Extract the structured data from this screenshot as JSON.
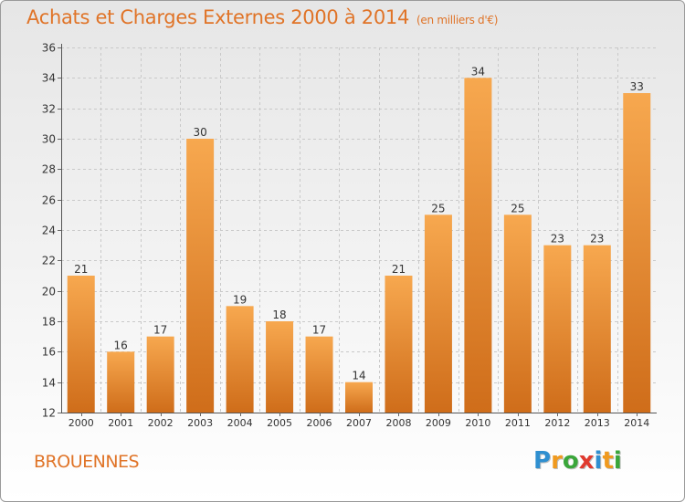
{
  "title": "Achats et Charges Externes 2000 à 2014",
  "subtitle": "(en milliers d'€)",
  "commune": "BROUENNES",
  "logo": {
    "letters": [
      "P",
      "r",
      "o",
      "x",
      "i",
      "t",
      "i"
    ],
    "colors": [
      "#2f8fd0",
      "#f09a1f",
      "#3aa63a",
      "#e03a2f",
      "#2f8fd0",
      "#f09a1f",
      "#3aa63a"
    ]
  },
  "colors": {
    "accent": "#e07428",
    "bar_top": "#f7a84f",
    "bar_bottom": "#cf6d1a"
  },
  "chart_data": {
    "type": "bar",
    "categories": [
      "2000",
      "2001",
      "2002",
      "2003",
      "2004",
      "2005",
      "2006",
      "2007",
      "2008",
      "2009",
      "2010",
      "2011",
      "2012",
      "2013",
      "2014"
    ],
    "values": [
      21,
      16,
      17,
      30,
      19,
      18,
      17,
      14,
      21,
      25,
      34,
      25,
      23,
      23,
      33
    ],
    "ylim": [
      12,
      36
    ],
    "yticks": [
      12,
      14,
      16,
      18,
      20,
      22,
      24,
      26,
      28,
      30,
      32,
      34,
      36
    ],
    "grid": true
  }
}
